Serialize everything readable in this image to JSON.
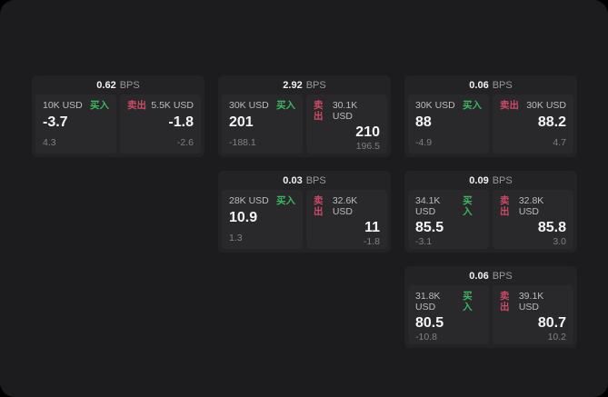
{
  "colors": {
    "background_outer": "#000000",
    "surface": "#1c1c1e",
    "card": "#232325",
    "panel": "#29292b",
    "buy_green": "#3cb661",
    "sell_red": "#cb4a66"
  },
  "labels": {
    "bps_unit": "BPS",
    "buy_tag": "买入",
    "sell_tag": "卖出"
  },
  "cards": [
    {
      "bps_value": "0.62",
      "bps_unit": "BPS",
      "buy": {
        "notional": "10K USD",
        "tag": "买入",
        "price": "-3.7",
        "delta": "4.3"
      },
      "sell": {
        "tag": "卖出",
        "notional": "5.5K USD",
        "price": "-1.8",
        "delta": "-2.6"
      }
    },
    {
      "bps_value": "2.92",
      "bps_unit": "BPS",
      "buy": {
        "notional": "30K USD",
        "tag": "买入",
        "price": "201",
        "delta": "-188.1"
      },
      "sell": {
        "tag": "卖出",
        "notional": "30.1K USD",
        "price": "210",
        "delta": "196.5"
      }
    },
    {
      "bps_value": "0.06",
      "bps_unit": "BPS",
      "buy": {
        "notional": "30K USD",
        "tag": "买入",
        "price": "88",
        "delta": "-4.9"
      },
      "sell": {
        "tag": "卖出",
        "notional": "30K USD",
        "price": "88.2",
        "delta": "4.7"
      }
    },
    {
      "bps_value": "0.03",
      "bps_unit": "BPS",
      "buy": {
        "notional": "28K USD",
        "tag": "买入",
        "price": "10.9",
        "delta": "1.3"
      },
      "sell": {
        "tag": "卖出",
        "notional": "32.6K USD",
        "price": "11",
        "delta": "-1.8"
      }
    },
    {
      "bps_value": "0.09",
      "bps_unit": "BPS",
      "buy": {
        "notional": "34.1K USD",
        "tag": "买入",
        "price": "85.5",
        "delta": "-3.1"
      },
      "sell": {
        "tag": "卖出",
        "notional": "32.8K USD",
        "price": "85.8",
        "delta": "3.0"
      }
    },
    {
      "bps_value": "0.06",
      "bps_unit": "BPS",
      "buy": {
        "notional": "31.8K USD",
        "tag": "买入",
        "price": "80.5",
        "delta": "-10.8"
      },
      "sell": {
        "tag": "卖出",
        "notional": "39.1K USD",
        "price": "80.7",
        "delta": "10.2"
      }
    }
  ]
}
